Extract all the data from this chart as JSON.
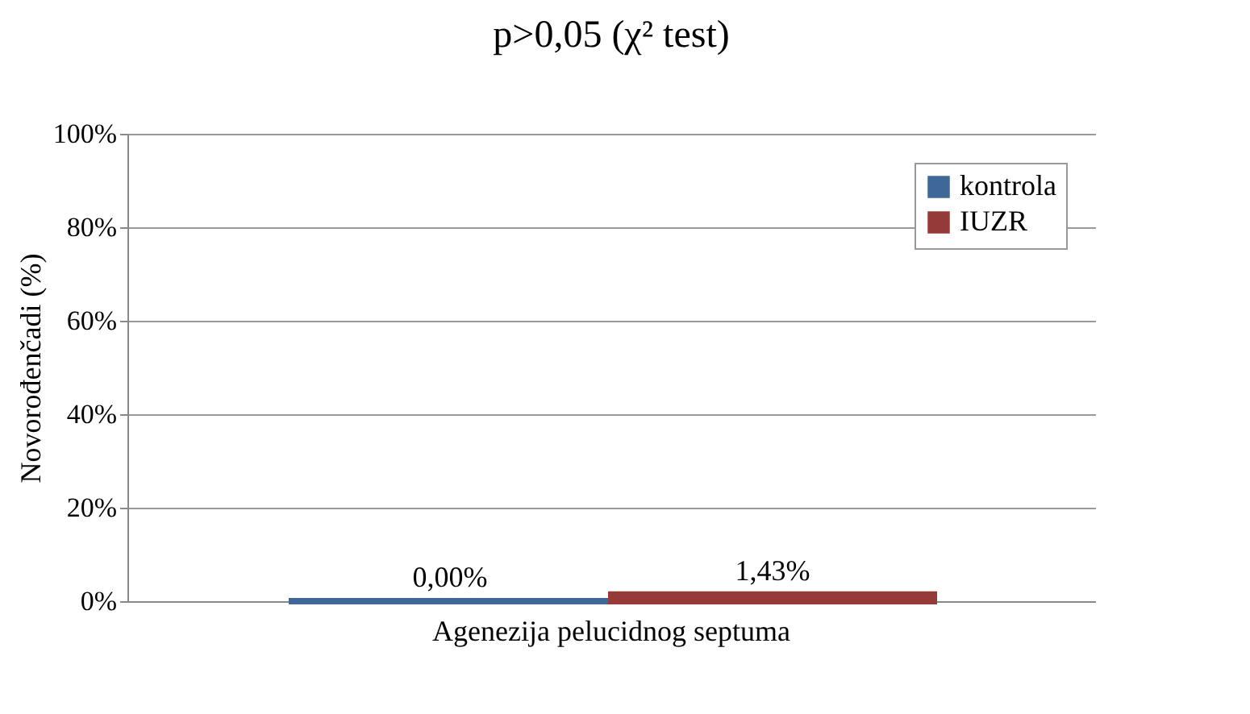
{
  "chart_data": {
    "type": "bar",
    "ylabel": "Novorođenčadi (%)",
    "annotations": [
      "p>0,05 (χ² test)"
    ],
    "categories": [
      "Agenezija pelucidnog septuma"
    ],
    "series": [
      {
        "name": "kontrola",
        "color": "#3f6797",
        "values": [
          0
        ],
        "value_labels": [
          "0,00%"
        ]
      },
      {
        "name": "IUZR",
        "color": "#953a38",
        "values": [
          1.43
        ],
        "value_labels": [
          "1,43%"
        ]
      }
    ],
    "ylim": [
      0,
      100
    ],
    "yticks": [
      {
        "value": 0,
        "label": "0%"
      },
      {
        "value": 20,
        "label": "20%"
      },
      {
        "value": 40,
        "label": "40%"
      },
      {
        "value": 60,
        "label": "60%"
      },
      {
        "value": 80,
        "label": "80%"
      },
      {
        "value": 100,
        "label": "100%"
      }
    ],
    "grid": true,
    "legend": "top right"
  }
}
